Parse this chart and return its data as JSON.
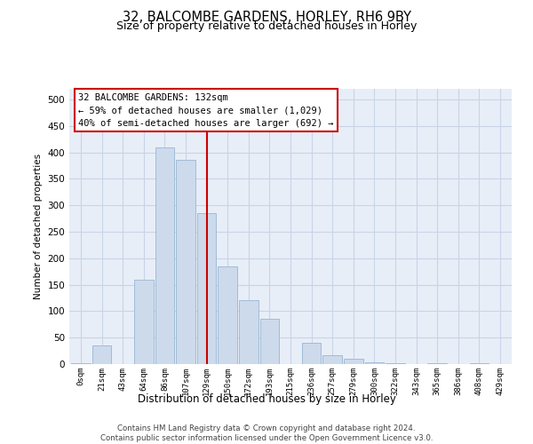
{
  "title1": "32, BALCOMBE GARDENS, HORLEY, RH6 9BY",
  "title2": "Size of property relative to detached houses in Horley",
  "xlabel": "Distribution of detached houses by size in Horley",
  "ylabel": "Number of detached properties",
  "footnote": "Contains HM Land Registry data © Crown copyright and database right 2024.\nContains public sector information licensed under the Open Government Licence v3.0.",
  "bar_color": "#cddaeb",
  "bar_edge_color": "#a0bcd8",
  "annotation_box_color": "#ffffff",
  "annotation_border_color": "#cc0000",
  "vline_color": "#cc0000",
  "grid_color": "#c8d4e8",
  "bg_color": "#e8eef7",
  "categories": [
    "0sqm",
    "21sqm",
    "43sqm",
    "64sqm",
    "86sqm",
    "107sqm",
    "129sqm",
    "150sqm",
    "172sqm",
    "193sqm",
    "215sqm",
    "236sqm",
    "257sqm",
    "279sqm",
    "300sqm",
    "322sqm",
    "343sqm",
    "365sqm",
    "386sqm",
    "408sqm",
    "429sqm"
  ],
  "values": [
    2,
    35,
    0,
    160,
    410,
    385,
    285,
    185,
    120,
    85,
    0,
    40,
    17,
    10,
    3,
    1,
    0,
    2,
    0,
    1,
    0
  ],
  "vline_x": 6.0,
  "annotation_line1": "32 BALCOMBE GARDENS: 132sqm",
  "annotation_line2": "← 59% of detached houses are smaller (1,029)",
  "annotation_line3": "40% of semi-detached houses are larger (692) →",
  "ylim": [
    0,
    520
  ],
  "yticks": [
    0,
    50,
    100,
    150,
    200,
    250,
    300,
    350,
    400,
    450,
    500
  ]
}
